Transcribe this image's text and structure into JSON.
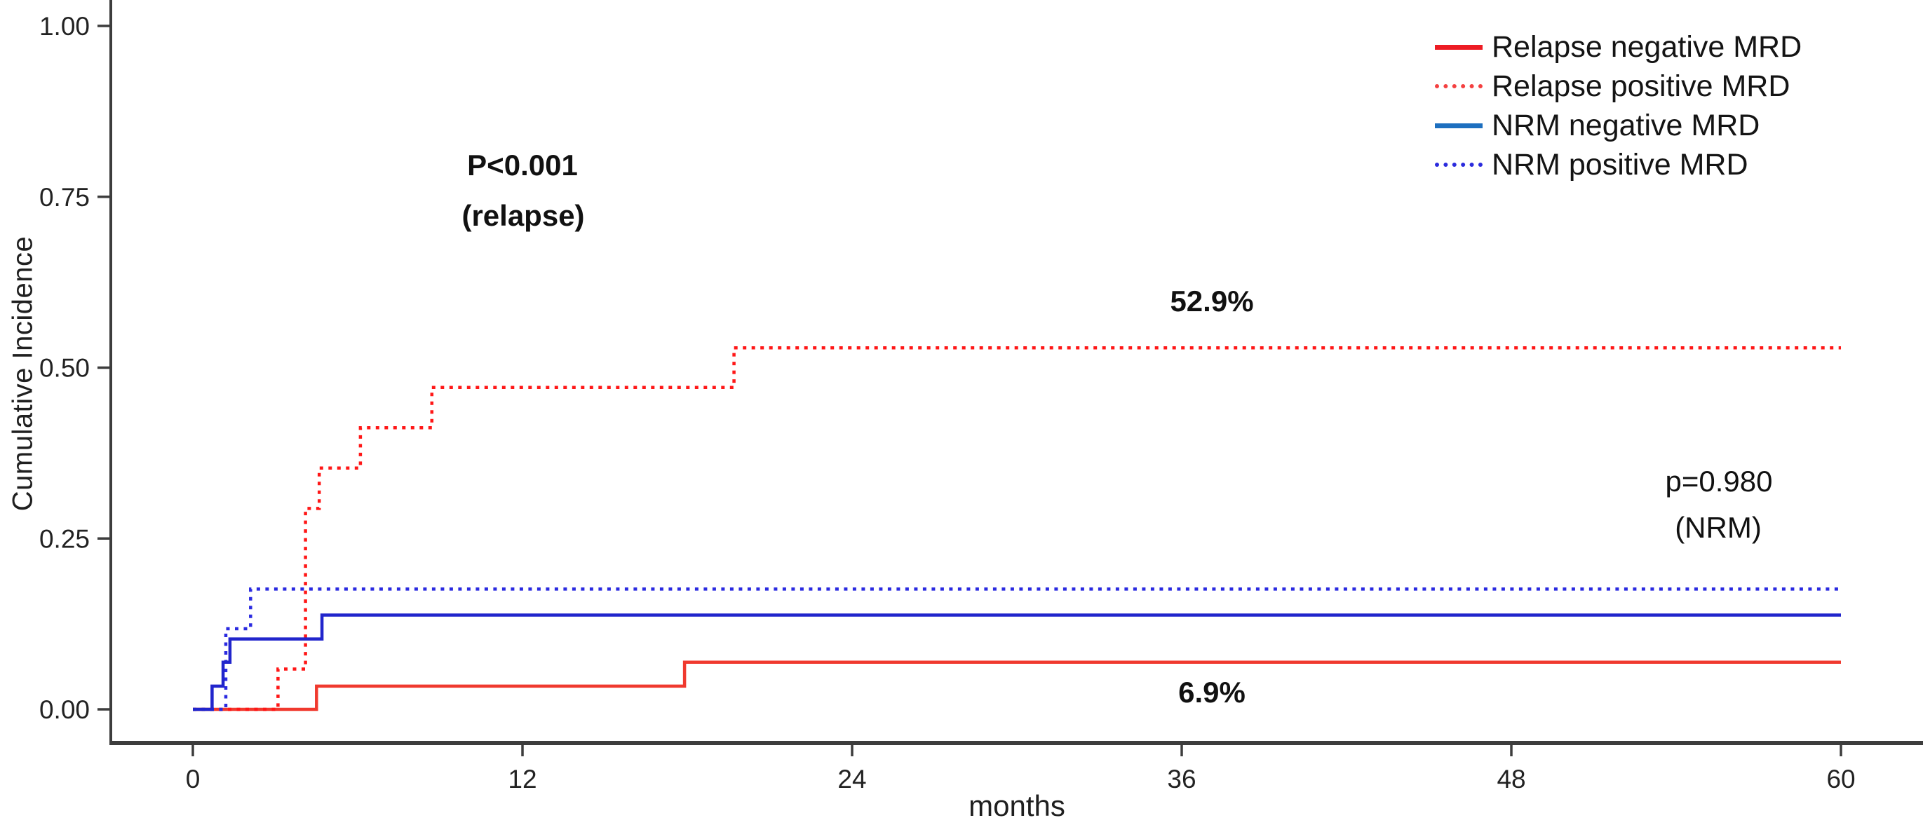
{
  "figure": {
    "background": "#ffffff"
  },
  "chart_data": {
    "type": "line",
    "subtype": "cumulative-incidence-step-curves",
    "title": "",
    "xlabel": "months",
    "ylabel": "Cumulative Incidence",
    "xlim": [
      0,
      60
    ],
    "ylim": [
      0,
      1.0
    ],
    "grid": false,
    "legend_position": "top-right",
    "axis_color": "#3d3d3d",
    "tick_label_color": "#222222",
    "x_ticks": [
      {
        "value": 0,
        "label": "0"
      },
      {
        "value": 12,
        "label": "12"
      },
      {
        "value": 24,
        "label": "24"
      },
      {
        "value": 36,
        "label": "36"
      },
      {
        "value": 48,
        "label": "48"
      },
      {
        "value": 60,
        "label": "60"
      }
    ],
    "y_ticks": [
      {
        "value": 1.0,
        "label": "1.00"
      },
      {
        "value": 0.75,
        "label": "0.75"
      },
      {
        "value": 0.5,
        "label": "0.50"
      },
      {
        "value": 0.25,
        "label": "0.25"
      },
      {
        "value": 0.0,
        "label": "0.00"
      }
    ],
    "series": [
      {
        "id": "relapse-negative-mrd",
        "name": "Relapse negative MRD",
        "style": "solid",
        "color": "#f0392e",
        "final_value": 0.069,
        "points": [
          [
            0,
            0
          ],
          [
            4.5,
            0
          ],
          [
            4.5,
            0.034
          ],
          [
            17.9,
            0.034
          ],
          [
            17.9,
            0.069
          ],
          [
            60,
            0.069
          ]
        ]
      },
      {
        "id": "relapse-positive-mrd",
        "name": "Relapse positive MRD",
        "style": "dotted",
        "color": "#ff1717",
        "final_value": 0.529,
        "points": [
          [
            0,
            0
          ],
          [
            3.1,
            0
          ],
          [
            3.1,
            0.059
          ],
          [
            4.1,
            0.059
          ],
          [
            4.1,
            0.294
          ],
          [
            4.6,
            0.294
          ],
          [
            4.6,
            0.353
          ],
          [
            6.1,
            0.353
          ],
          [
            6.1,
            0.412
          ],
          [
            8.7,
            0.412
          ],
          [
            8.7,
            0.471
          ],
          [
            19.7,
            0.471
          ],
          [
            19.7,
            0.529
          ],
          [
            60,
            0.529
          ]
        ]
      },
      {
        "id": "nrm-positive-mrd",
        "name": "NRM positive MRD",
        "style": "dotted",
        "color": "#2a2ae0",
        "final_value": 0.176,
        "points": [
          [
            0,
            0
          ],
          [
            1.2,
            0
          ],
          [
            1.2,
            0.118
          ],
          [
            2.1,
            0.118
          ],
          [
            2.1,
            0.176
          ],
          [
            60,
            0.176
          ]
        ]
      },
      {
        "id": "nrm-negative-mrd",
        "name": "NRM negative MRD",
        "style": "solid",
        "color": "#2125cc",
        "final_value": 0.138,
        "points": [
          [
            0,
            0
          ],
          [
            0.7,
            0
          ],
          [
            0.7,
            0.034
          ],
          [
            1.1,
            0.034
          ],
          [
            1.1,
            0.069
          ],
          [
            1.35,
            0.069
          ],
          [
            1.35,
            0.103
          ],
          [
            4.7,
            0.103
          ],
          [
            4.7,
            0.138
          ],
          [
            60,
            0.138
          ]
        ]
      }
    ],
    "annotations": {
      "relapse_p": {
        "line1": "P<0.001",
        "line2": "(relapse)"
      },
      "relapse_positive_final": "52.9%",
      "relapse_negative_final": "6.9%",
      "nrm_p": {
        "line1": "p=0.980",
        "line2": "(NRM)"
      }
    }
  },
  "legend": {
    "items": [
      {
        "label": "Relapse negative MRD",
        "style": "solid",
        "color": "#ed1c24"
      },
      {
        "label": "Relapse positive MRD",
        "style": "dotted",
        "color": "#f44040"
      },
      {
        "label": "NRM negative MRD",
        "style": "solid",
        "color": "#1d6fbf"
      },
      {
        "label": "NRM positive MRD",
        "style": "dotted",
        "color": "#2b2bdd"
      }
    ]
  }
}
